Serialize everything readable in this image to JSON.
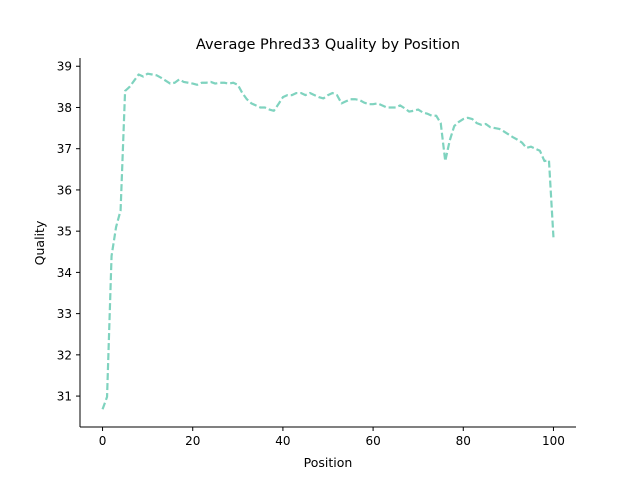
{
  "chart_data": {
    "type": "line",
    "title": "Average Phred33 Quality by Position",
    "xlabel": "Position",
    "ylabel": "Quality",
    "xlim": [
      -5,
      105
    ],
    "ylim": [
      30.25,
      39.2
    ],
    "xticks": [
      0,
      20,
      40,
      60,
      80,
      100
    ],
    "yticks": [
      31,
      32,
      33,
      34,
      35,
      36,
      37,
      38,
      39
    ],
    "grid": false,
    "line_style": "dashed",
    "color": "#7fd3bf",
    "series": [
      {
        "x": [
          0,
          1,
          2,
          3,
          4,
          5,
          6,
          7,
          8,
          9,
          10,
          11,
          12,
          13,
          14,
          15,
          16,
          17,
          18,
          19,
          20,
          21,
          22,
          23,
          24,
          25,
          26,
          27,
          28,
          29,
          30,
          31,
          32,
          33,
          34,
          35,
          36,
          37,
          38,
          39,
          40,
          41,
          42,
          43,
          44,
          45,
          46,
          47,
          48,
          49,
          50,
          51,
          52,
          53,
          54,
          55,
          56,
          57,
          58,
          59,
          60,
          61,
          62,
          63,
          64,
          65,
          66,
          67,
          68,
          69,
          70,
          71,
          72,
          73,
          74,
          75,
          76,
          77,
          78,
          79,
          80,
          81,
          82,
          83,
          84,
          85,
          86,
          87,
          88,
          89,
          90,
          91,
          92,
          93,
          94,
          95,
          96,
          97,
          98,
          99,
          100
        ],
        "values": [
          30.68,
          30.98,
          34.4,
          35.1,
          35.5,
          38.4,
          38.5,
          38.65,
          38.8,
          38.75,
          38.82,
          38.8,
          38.78,
          38.72,
          38.65,
          38.58,
          38.6,
          38.68,
          38.62,
          38.6,
          38.58,
          38.55,
          38.6,
          38.6,
          38.62,
          38.58,
          38.6,
          38.6,
          38.58,
          38.6,
          38.55,
          38.35,
          38.2,
          38.1,
          38.05,
          38.0,
          38.0,
          37.95,
          37.92,
          38.08,
          38.25,
          38.3,
          38.3,
          38.35,
          38.35,
          38.3,
          38.35,
          38.3,
          38.25,
          38.22,
          38.3,
          38.35,
          38.3,
          38.1,
          38.15,
          38.2,
          38.2,
          38.18,
          38.12,
          38.08,
          38.08,
          38.1,
          38.05,
          38.0,
          38.0,
          38.0,
          38.05,
          37.98,
          37.9,
          37.92,
          37.95,
          37.88,
          37.85,
          37.8,
          37.8,
          37.62,
          36.7,
          37.2,
          37.55,
          37.65,
          37.72,
          37.75,
          37.72,
          37.62,
          37.58,
          37.6,
          37.52,
          37.5,
          37.48,
          37.42,
          37.35,
          37.28,
          37.22,
          37.15,
          37.02,
          37.05,
          37.0,
          36.95,
          36.7,
          36.72,
          34.85
        ]
      }
    ]
  }
}
